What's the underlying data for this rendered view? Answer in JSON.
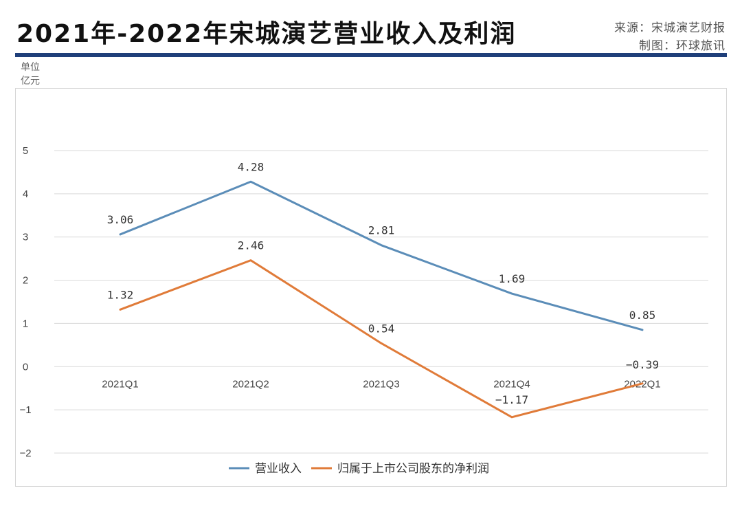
{
  "header": {
    "title": "2021年-2022年宋城演艺营业收入及利润",
    "source_line1": "来源：宋城演艺财报",
    "source_line2": "制图：环球旅讯"
  },
  "unit": {
    "line1": "单位",
    "line2": "亿元"
  },
  "colors": {
    "accent": "#1f3f7a",
    "revenue": "#5b8db8",
    "profit": "#e07b39",
    "grid": "#d9d9d9"
  },
  "chart_data": {
    "type": "line",
    "categories": [
      "2021Q1",
      "2021Q2",
      "2021Q3",
      "2021Q4",
      "2022Q1"
    ],
    "series": [
      {
        "name": "营业收入",
        "values": [
          3.06,
          4.28,
          2.81,
          1.69,
          0.85
        ],
        "labels": [
          "3.06",
          "4.28",
          "2.81",
          "1.69",
          "0.85"
        ]
      },
      {
        "name": "归属于上市公司股东的净利润",
        "values": [
          1.32,
          2.46,
          0.54,
          -1.17,
          -0.39
        ],
        "labels": [
          "1.32",
          "2.46",
          "0.54",
          "−1.17",
          "−0.39"
        ]
      }
    ],
    "ylim": [
      -2,
      5
    ],
    "yticks": [
      5,
      4,
      3,
      2,
      1,
      0,
      -1,
      -2
    ],
    "ytick_labels": [
      "5",
      "4",
      "3",
      "2",
      "1",
      "0",
      "−1",
      "−2"
    ],
    "grid": true,
    "legend": "bottom-center"
  }
}
